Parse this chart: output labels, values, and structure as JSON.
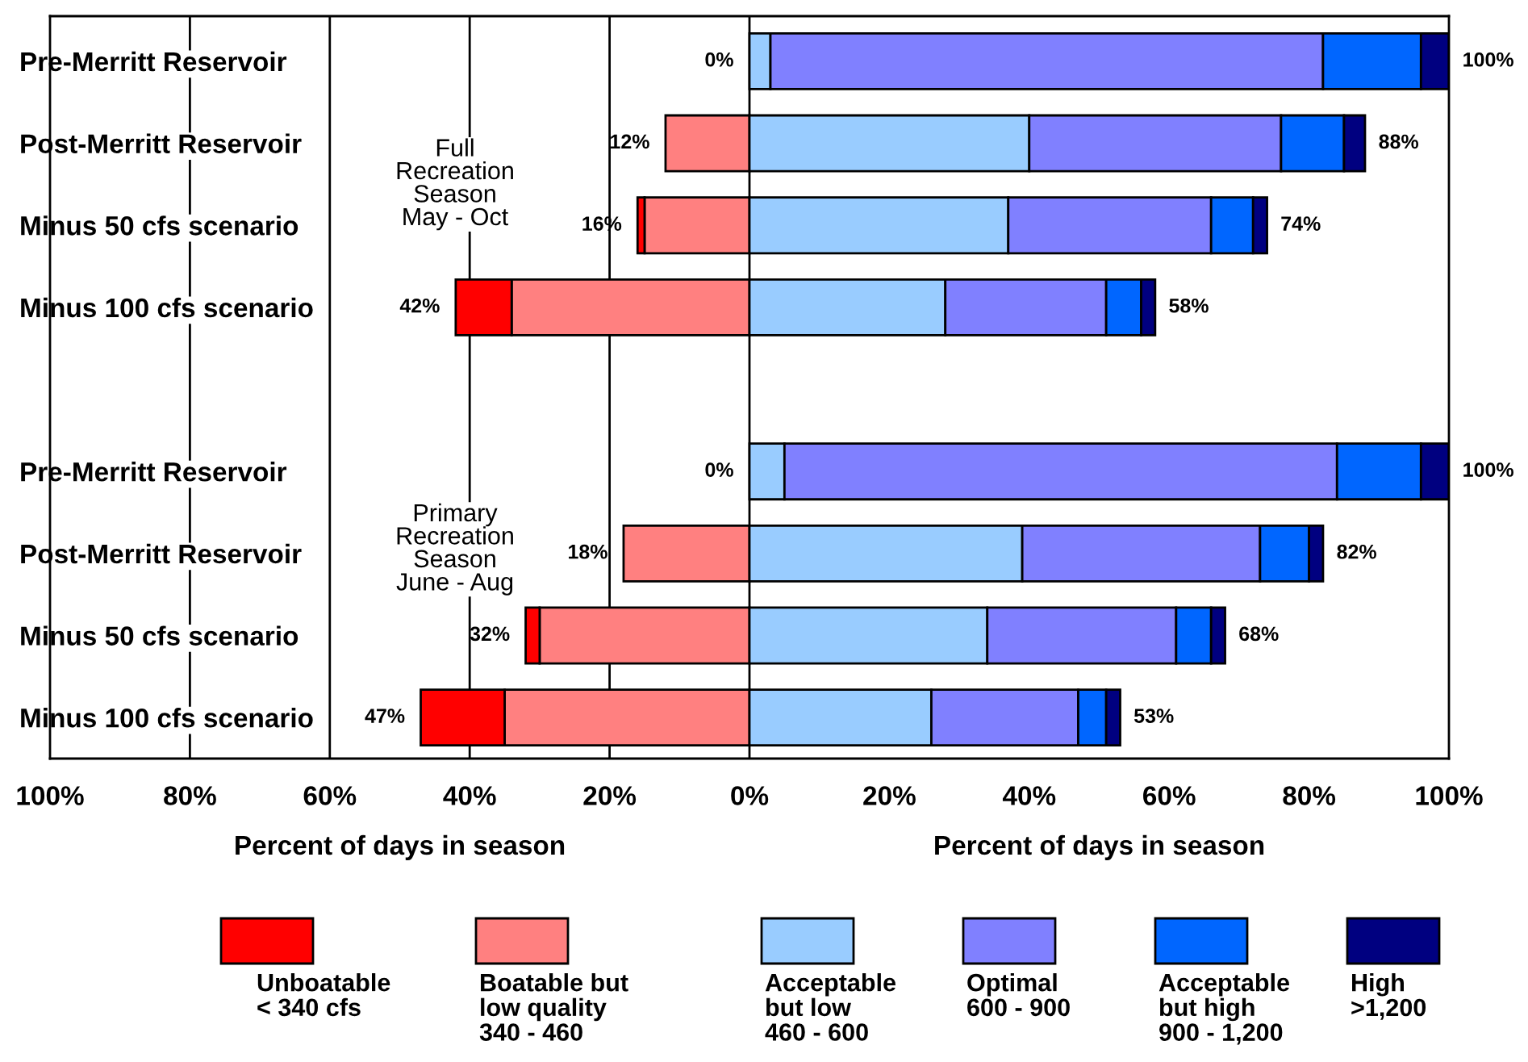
{
  "chart_data": {
    "type": "bar",
    "orientation": "horizontal",
    "stacked": true,
    "categories": [
      "Pre-Merritt Reservoir",
      "Post-Merritt Reservoir",
      "Minus 50 cfs scenario",
      "Minus 100 cfs scenario",
      null,
      "Pre-Merritt Reservoir",
      "Post-Merritt Reservoir",
      "Minus 50 cfs scenario",
      "Minus 100 cfs scenario"
    ],
    "series": [
      {
        "name": "Boatable but\nlow quality\n340 - 460",
        "color": "#ff8080",
        "values": [
          0,
          -12,
          -15,
          -34,
          null,
          0,
          -18,
          -30,
          -35
        ]
      },
      {
        "name": "Unboatable\n< 340 cfs",
        "color": "#ff0000",
        "values": [
          0,
          0,
          -1,
          -8,
          null,
          0,
          0,
          -2,
          -12
        ]
      },
      {
        "name": "Acceptable\nbut low\n460 - 600",
        "color": "#99ccff",
        "values": [
          3,
          40,
          37,
          28,
          null,
          5,
          39,
          34,
          26
        ]
      },
      {
        "name": "Optimal\n600 - 900",
        "color": "#8080ff",
        "values": [
          79,
          36,
          29,
          23,
          null,
          79,
          34,
          27,
          21
        ]
      },
      {
        "name": "Acceptable\nbut high\n900 - 1,200",
        "color": "#0066ff",
        "values": [
          14,
          9,
          6,
          5,
          null,
          12,
          7,
          5,
          4
        ]
      },
      {
        "name": "High\n>1,200",
        "color": "#000080",
        "values": [
          4,
          3,
          2,
          2,
          null,
          4,
          2,
          2,
          2
        ]
      }
    ],
    "totals": [
      [
        "0%",
        "100%"
      ],
      [
        "12%",
        "88%"
      ],
      [
        "16%",
        "74%"
      ],
      [
        "42%",
        "58%"
      ],
      null,
      [
        "0%",
        "100%"
      ],
      [
        "18%",
        "82%"
      ],
      [
        "32%",
        "68%"
      ],
      [
        "47%",
        "53%"
      ]
    ],
    "xlim": [
      -100,
      100
    ],
    "xticks": [
      {
        "value": -100,
        "label": "100%"
      },
      {
        "value": -80,
        "label": "80%"
      },
      {
        "value": -60,
        "label": "60%"
      },
      {
        "value": -40,
        "label": "40%"
      },
      {
        "value": -20,
        "label": "20%"
      },
      {
        "value": 0,
        "label": "0%"
      },
      {
        "value": 20,
        "label": "20%"
      },
      {
        "value": 40,
        "label": "40%"
      },
      {
        "value": 60,
        "label": "60%"
      },
      {
        "value": 80,
        "label": "80%"
      },
      {
        "value": 100,
        "label": "100%"
      }
    ],
    "xlabel": "Percent of days in season",
    "annotations": [
      "Percent of days in season",
      "Full\nRecreation\nSeason\nMay - Oct",
      "Primary\nRecreation\nSeason\nJune - Aug"
    ],
    "ref_lines": [
      {
        "axis": "x",
        "value": -80,
        "color": "#000000"
      },
      {
        "axis": "x",
        "value": -60,
        "color": "#000000"
      },
      {
        "axis": "x",
        "value": -40,
        "color": "#000000"
      },
      {
        "axis": "x",
        "value": -20,
        "color": "#000000"
      },
      {
        "axis": "x",
        "value": 0,
        "color": "#000000"
      }
    ],
    "legend": "bottom",
    "grid": false
  }
}
